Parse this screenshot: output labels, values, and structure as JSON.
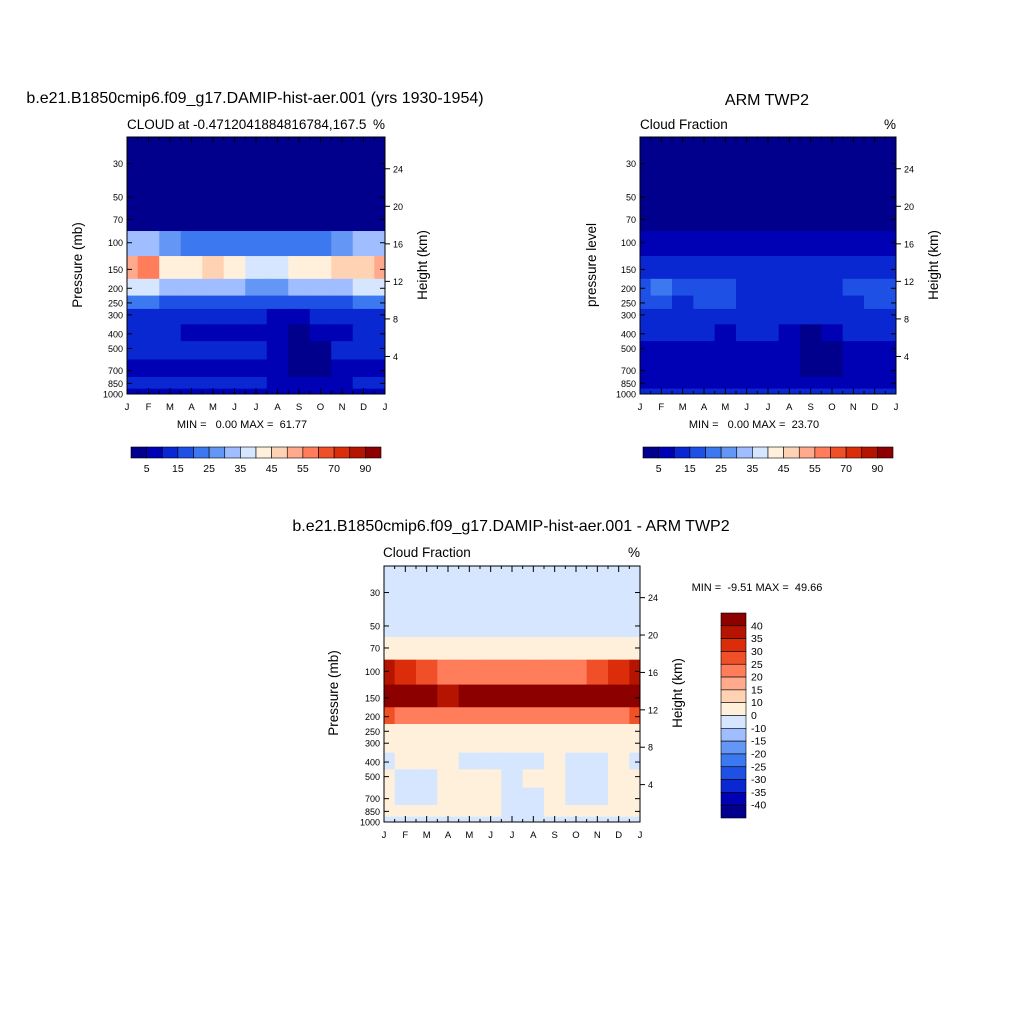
{
  "chart_data": [
    {
      "type": "heatmap",
      "title": "b.e21.B1850cmip6.f09_g17.DAMIP-hist-aer.001 (yrs 1930-1954)",
      "subtitle_left": "CLOUD at -0.4712041884816784,167.5",
      "subtitle_right": "%",
      "ylabel_left": "Pressure (mb)",
      "ylabel_right": "Height (km)",
      "x_ticks": [
        "J",
        "F",
        "M",
        "A",
        "M",
        "J",
        "J",
        "A",
        "S",
        "O",
        "N",
        "D",
        "J"
      ],
      "y_ticks_pressure": [
        30,
        50,
        70,
        100,
        150,
        200,
        250,
        300,
        400,
        500,
        700,
        850,
        1000
      ],
      "y_ticks_height": [
        24,
        20,
        16,
        12,
        8,
        4
      ],
      "ylim_pressure": [
        1000,
        20
      ],
      "stats": "MIN =   0.00 MAX =  61.77",
      "colorbar_labels": [
        "5",
        "15",
        "25",
        "35",
        "45",
        "55",
        "70",
        "90"
      ],
      "colorbar_levels": [
        5,
        10,
        15,
        20,
        25,
        30,
        35,
        40,
        45,
        50,
        55,
        60,
        70,
        80,
        90
      ],
      "levels": [
        20,
        30,
        50,
        70,
        100,
        150,
        200,
        250,
        300,
        400,
        500,
        700,
        850,
        1000
      ],
      "months": [
        "J",
        "F",
        "M",
        "A",
        "M",
        "J",
        "J",
        "A",
        "S",
        "O",
        "N",
        "D",
        "J"
      ],
      "values": [
        [
          0,
          0,
          0,
          0,
          0,
          0,
          0,
          0,
          0,
          0,
          0,
          0,
          0
        ],
        [
          0,
          0,
          0,
          0,
          0,
          0,
          0,
          0,
          0,
          0,
          0,
          0,
          0
        ],
        [
          0,
          0,
          0,
          0,
          0,
          0,
          0,
          0,
          0,
          0,
          0,
          0,
          0
        ],
        [
          4,
          3,
          3,
          3,
          3,
          2,
          2,
          2,
          2,
          3,
          3,
          3,
          4
        ],
        [
          34,
          30,
          27,
          24,
          22,
          20,
          20,
          20,
          22,
          24,
          27,
          30,
          34
        ],
        [
          52,
          55,
          44,
          43,
          47,
          40,
          36,
          37,
          40,
          44,
          47,
          48,
          52
        ],
        [
          36,
          38,
          33,
          32,
          33,
          30,
          28,
          28,
          30,
          32,
          34,
          35,
          36
        ],
        [
          20,
          21,
          19,
          18,
          18,
          17,
          16,
          16,
          17,
          18,
          19,
          20,
          20
        ],
        [
          13,
          12,
          12,
          11,
          11,
          10,
          10,
          9,
          9,
          10,
          11,
          12,
          13
        ],
        [
          11,
          10,
          10,
          9,
          7,
          9,
          9,
          8,
          4,
          6,
          9,
          10,
          11
        ],
        [
          10,
          10,
          10,
          10,
          10,
          10,
          10,
          9,
          3,
          3,
          10,
          10,
          10
        ],
        [
          9,
          9,
          9,
          9,
          9,
          9,
          8,
          7,
          3,
          3,
          8,
          9,
          9
        ],
        [
          10,
          10,
          10,
          10,
          10,
          10,
          10,
          9,
          5,
          6,
          9,
          10,
          10
        ],
        [
          8,
          8,
          8,
          8,
          8,
          8,
          8,
          8,
          8,
          8,
          8,
          8,
          8
        ]
      ]
    },
    {
      "type": "heatmap",
      "title": "ARM TWP2",
      "subtitle_left": "Cloud Fraction",
      "subtitle_right": "%",
      "ylabel_left": "pressure level",
      "ylabel_right": "Height (km)",
      "x_ticks": [
        "J",
        "F",
        "M",
        "A",
        "M",
        "J",
        "J",
        "A",
        "S",
        "O",
        "N",
        "D",
        "J"
      ],
      "y_ticks_pressure": [
        30,
        50,
        70,
        100,
        150,
        200,
        250,
        300,
        400,
        500,
        700,
        850,
        1000
      ],
      "y_ticks_height": [
        24,
        20,
        16,
        12,
        8,
        4
      ],
      "ylim_pressure": [
        1000,
        20
      ],
      "stats": "MIN =   0.00 MAX =  23.70",
      "colorbar_labels": [
        "5",
        "15",
        "25",
        "35",
        "45",
        "55",
        "70",
        "90"
      ],
      "colorbar_levels": [
        5,
        10,
        15,
        20,
        25,
        30,
        35,
        40,
        45,
        50,
        55,
        60,
        70,
        80,
        90
      ],
      "levels": [
        20,
        30,
        50,
        70,
        100,
        150,
        200,
        250,
        300,
        400,
        500,
        700,
        850,
        1000
      ],
      "months": [
        "J",
        "F",
        "M",
        "A",
        "M",
        "J",
        "J",
        "A",
        "S",
        "O",
        "N",
        "D",
        "J"
      ],
      "values": [
        [
          0,
          0,
          0,
          0,
          0,
          0,
          0,
          0,
          0,
          0,
          0,
          0,
          0
        ],
        [
          0,
          0,
          0,
          0,
          0,
          0,
          0,
          0,
          0,
          0,
          0,
          0,
          0
        ],
        [
          0,
          0,
          0,
          0,
          0,
          0,
          0,
          0,
          0,
          0,
          0,
          0,
          0
        ],
        [
          3,
          3,
          2,
          2,
          2,
          2,
          2,
          2,
          2,
          2,
          2,
          3,
          3
        ],
        [
          9,
          8,
          7,
          6,
          6,
          5,
          5,
          5,
          5,
          6,
          6,
          7,
          9
        ],
        [
          14,
          13,
          12,
          12,
          13,
          11,
          10,
          11,
          11,
          12,
          12,
          13,
          14
        ],
        [
          17,
          20,
          16,
          15,
          16,
          14,
          13,
          13,
          13,
          14,
          15,
          16,
          17
        ],
        [
          15,
          19,
          14,
          15,
          16,
          13,
          12,
          12,
          12,
          13,
          14,
          15,
          15
        ],
        [
          13,
          14,
          13,
          12,
          12,
          11,
          11,
          11,
          10,
          11,
          12,
          12,
          13
        ],
        [
          11,
          10,
          10,
          10,
          8,
          10,
          10,
          9,
          4,
          6,
          10,
          10,
          11
        ],
        [
          9,
          9,
          9,
          9,
          9,
          9,
          9,
          8,
          2,
          2,
          9,
          9,
          9
        ],
        [
          8,
          8,
          8,
          8,
          8,
          8,
          8,
          7,
          3,
          3,
          8,
          8,
          8
        ],
        [
          6,
          6,
          6,
          6,
          6,
          6,
          6,
          6,
          6,
          6,
          6,
          6,
          6
        ],
        [
          13,
          13,
          13,
          13,
          13,
          13,
          13,
          13,
          13,
          13,
          13,
          13,
          13
        ]
      ]
    },
    {
      "type": "heatmap",
      "title": "b.e21.B1850cmip6.f09_g17.DAMIP-hist-aer.001 - ARM TWP2",
      "subtitle_left": "Cloud Fraction",
      "subtitle_right": "%",
      "ylabel_left": "Pressure (mb)",
      "ylabel_right": "Height (km)",
      "x_ticks": [
        "J",
        "F",
        "M",
        "A",
        "M",
        "J",
        "J",
        "A",
        "S",
        "O",
        "N",
        "D",
        "J"
      ],
      "y_ticks_pressure": [
        30,
        50,
        70,
        100,
        150,
        200,
        250,
        300,
        400,
        500,
        700,
        850,
        1000
      ],
      "y_ticks_height": [
        24,
        20,
        16,
        12,
        8,
        4
      ],
      "ylim_pressure": [
        1000,
        20
      ],
      "stats": "MIN =  -9.51 MAX =  49.66",
      "colorbar_labels": [
        "40",
        "35",
        "30",
        "25",
        "20",
        "15",
        "10",
        "0",
        "-10",
        "-15",
        "-20",
        "-25",
        "-30",
        "-35",
        "-40"
      ],
      "colorbar_levels": [
        -40,
        -35,
        -30,
        -25,
        -20,
        -15,
        -10,
        0,
        10,
        15,
        20,
        25,
        30,
        35,
        40
      ],
      "levels": [
        20,
        30,
        50,
        70,
        100,
        150,
        200,
        250,
        300,
        400,
        500,
        700,
        850,
        1000
      ],
      "months": [
        "J",
        "F",
        "M",
        "A",
        "M",
        "J",
        "J",
        "A",
        "S",
        "O",
        "N",
        "D",
        "J"
      ],
      "values": [
        [
          -2,
          -2,
          -2,
          -2,
          -2,
          -2,
          -2,
          -2,
          -2,
          -2,
          -2,
          -2,
          -2
        ],
        [
          -2,
          -2,
          -2,
          -2,
          -2,
          -2,
          -2,
          -2,
          -2,
          -2,
          -2,
          -2,
          -2
        ],
        [
          -1,
          -1,
          -1,
          -1,
          -1,
          -1,
          -1,
          -1,
          -1,
          -1,
          -1,
          -1,
          -1
        ],
        [
          2,
          2,
          2,
          2,
          2,
          2,
          2,
          2,
          2,
          2,
          2,
          2,
          2
        ],
        [
          35,
          30,
          26,
          24,
          22,
          20,
          20,
          20,
          22,
          24,
          26,
          30,
          35
        ],
        [
          46,
          46,
          40,
          38,
          44,
          40,
          42,
          40,
          42,
          42,
          45,
          42,
          46
        ],
        [
          25,
          23,
          22,
          20,
          22,
          22,
          20,
          20,
          22,
          22,
          22,
          22,
          25
        ],
        [
          9,
          7,
          8,
          7,
          7,
          8,
          7,
          7,
          8,
          8,
          7,
          8,
          9
        ],
        [
          4,
          3,
          3,
          3,
          3,
          3,
          3,
          3,
          3,
          3,
          3,
          3,
          4
        ],
        [
          -2,
          3,
          3,
          3,
          -2,
          -2,
          -2,
          -2,
          3,
          -2,
          -2,
          3,
          -2
        ],
        [
          3,
          -2,
          -2,
          3,
          3,
          3,
          -2,
          3,
          3,
          -2,
          -2,
          3,
          3
        ],
        [
          3,
          -2,
          -2,
          3,
          3,
          3,
          -2,
          -2,
          3,
          -2,
          -2,
          3,
          3
        ],
        [
          3,
          3,
          3,
          3,
          3,
          3,
          -2,
          -2,
          3,
          3,
          3,
          3,
          3
        ],
        [
          -5,
          -5,
          -5,
          -5,
          -5,
          -5,
          -5,
          -5,
          -5,
          -5,
          -5,
          -5,
          -5
        ]
      ]
    }
  ]
}
